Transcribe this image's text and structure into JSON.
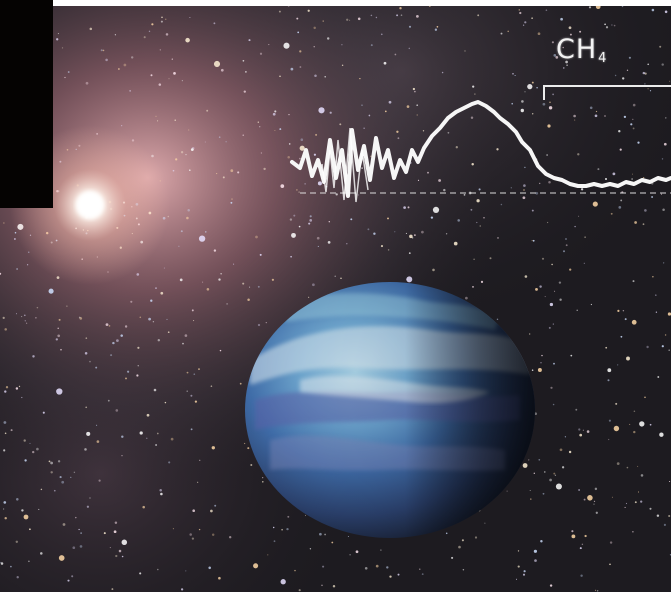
{
  "scene": {
    "description_colors": {
      "space": "#1c1a1f",
      "nebula": "#c98a8f",
      "spectrum": "#f5f5f5",
      "planet_ocean": "#3c6fa6",
      "planet_shadow": "#141824"
    }
  },
  "spectrum_label": {
    "molecule": "CH",
    "subscript": "4"
  },
  "icons": {
    "star": "bright-star-icon",
    "planet": "earth-like-planet-icon"
  }
}
